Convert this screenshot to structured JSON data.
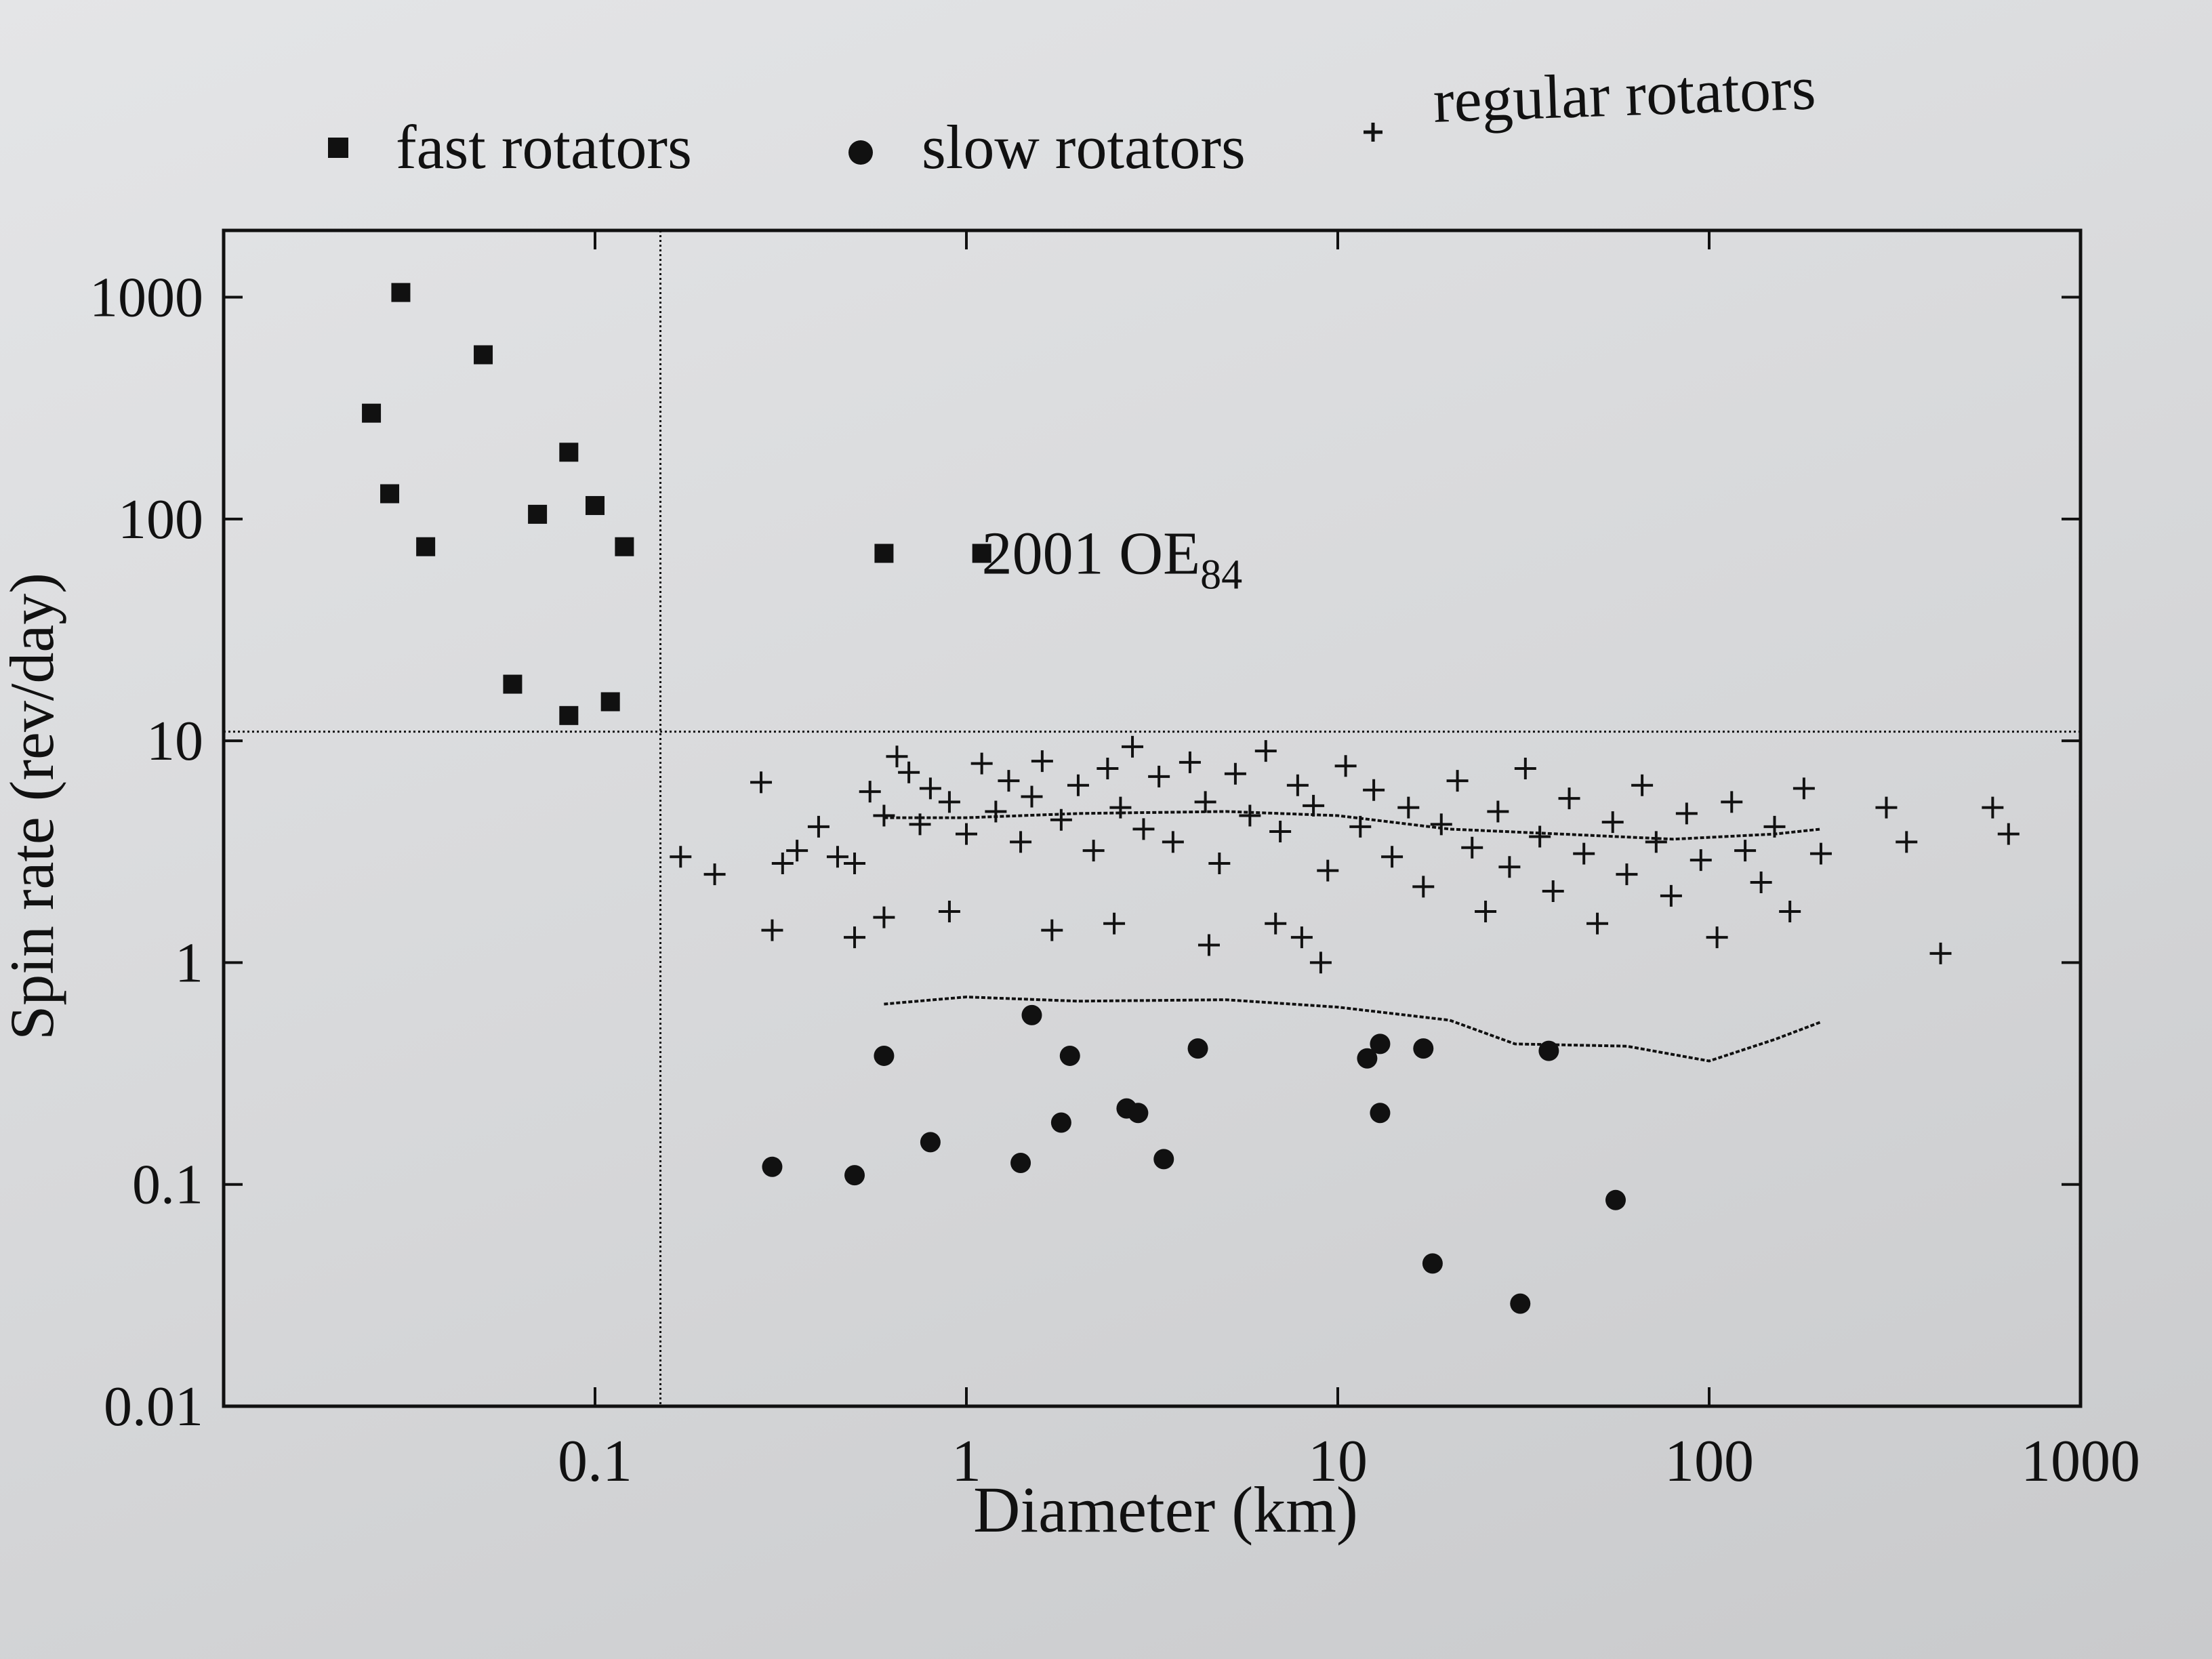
{
  "chart_data": {
    "type": "scatter",
    "title": "",
    "xlabel": "Diameter (km)",
    "ylabel": "Spin rate (rev/day)",
    "x_scale": "log",
    "y_scale": "log",
    "xlim": [
      0.01,
      1000
    ],
    "ylim": [
      0.01,
      2000
    ],
    "x_ticks": [
      {
        "value": 0.1,
        "label": "0.1"
      },
      {
        "value": 1,
        "label": "1"
      },
      {
        "value": 10,
        "label": "10"
      },
      {
        "value": 100,
        "label": "100"
      },
      {
        "value": 1000,
        "label": "1000"
      }
    ],
    "y_ticks": [
      {
        "value": 0.01,
        "label": "0.01"
      },
      {
        "value": 0.1,
        "label": "0.1"
      },
      {
        "value": 1,
        "label": "1"
      },
      {
        "value": 10,
        "label": "10"
      },
      {
        "value": 100,
        "label": "100"
      },
      {
        "value": 1000,
        "label": "1000"
      }
    ],
    "legend_position": "top",
    "series": [
      {
        "name": "fast rotators",
        "marker": "square",
        "points": [
          [
            0.03,
            1050
          ],
          [
            0.05,
            550
          ],
          [
            0.025,
            300
          ],
          [
            0.085,
            200
          ],
          [
            0.028,
            130
          ],
          [
            0.1,
            115
          ],
          [
            0.07,
            105
          ],
          [
            0.035,
            75
          ],
          [
            0.12,
            75
          ],
          [
            0.06,
            18
          ],
          [
            0.085,
            13
          ],
          [
            0.11,
            15
          ],
          [
            1.1,
            70
          ]
        ]
      },
      {
        "name": "slow rotators",
        "marker": "circle",
        "points": [
          [
            1.5,
            0.58
          ],
          [
            0.6,
            0.38
          ],
          [
            1.9,
            0.38
          ],
          [
            4.2,
            0.41
          ],
          [
            13,
            0.43
          ],
          [
            12,
            0.37
          ],
          [
            17,
            0.41
          ],
          [
            37,
            0.4
          ],
          [
            2.7,
            0.22
          ],
          [
            2.9,
            0.21
          ],
          [
            13,
            0.21
          ],
          [
            1.8,
            0.19
          ],
          [
            0.8,
            0.155
          ],
          [
            0.3,
            0.12
          ],
          [
            0.5,
            0.11
          ],
          [
            1.4,
            0.125
          ],
          [
            3.4,
            0.13
          ],
          [
            56,
            0.085
          ],
          [
            18,
            0.044
          ],
          [
            31,
            0.029
          ]
        ]
      },
      {
        "name": "regular rotators",
        "marker": "plus",
        "points": [
          [
            0.17,
            3.0
          ],
          [
            0.21,
            2.5
          ],
          [
            0.28,
            6.5
          ],
          [
            0.32,
            2.8
          ],
          [
            0.35,
            3.2
          ],
          [
            0.4,
            4.1
          ],
          [
            0.45,
            3.0
          ],
          [
            0.5,
            2.8
          ],
          [
            0.55,
            5.9
          ],
          [
            0.6,
            4.6
          ],
          [
            0.65,
            8.5
          ],
          [
            0.7,
            7.2
          ],
          [
            0.75,
            4.2
          ],
          [
            0.8,
            6.1
          ],
          [
            0.9,
            5.3
          ],
          [
            1.0,
            3.8
          ],
          [
            1.1,
            7.9
          ],
          [
            1.2,
            4.8
          ],
          [
            1.3,
            6.6
          ],
          [
            1.4,
            3.5
          ],
          [
            1.5,
            5.6
          ],
          [
            1.6,
            8.1
          ],
          [
            1.8,
            4.4
          ],
          [
            2.0,
            6.3
          ],
          [
            2.2,
            3.2
          ],
          [
            2.4,
            7.5
          ],
          [
            2.6,
            5.0
          ],
          [
            2.8,
            9.4
          ],
          [
            3.0,
            4.0
          ],
          [
            3.3,
            6.9
          ],
          [
            3.6,
            3.5
          ],
          [
            4.0,
            8.0
          ],
          [
            4.4,
            5.3
          ],
          [
            4.8,
            2.8
          ],
          [
            5.3,
            7.1
          ],
          [
            5.8,
            4.6
          ],
          [
            6.4,
            9.0
          ],
          [
            7.0,
            3.9
          ],
          [
            7.8,
            6.3
          ],
          [
            8.6,
            5.1
          ],
          [
            9.4,
            2.6
          ],
          [
            10.5,
            7.7
          ],
          [
            11.5,
            4.1
          ],
          [
            12.5,
            6.0
          ],
          [
            14,
            3.0
          ],
          [
            15.5,
            5.0
          ],
          [
            17,
            2.2
          ],
          [
            19,
            4.2
          ],
          [
            21,
            6.6
          ],
          [
            23,
            3.3
          ],
          [
            25,
            1.7
          ],
          [
            27,
            4.8
          ],
          [
            29,
            2.7
          ],
          [
            32,
            7.5
          ],
          [
            35,
            3.7
          ],
          [
            38,
            2.1
          ],
          [
            42,
            5.5
          ],
          [
            46,
            3.1
          ],
          [
            50,
            1.5
          ],
          [
            55,
            4.3
          ],
          [
            60,
            2.5
          ],
          [
            66,
            6.3
          ],
          [
            72,
            3.5
          ],
          [
            79,
            2.0
          ],
          [
            87,
            4.7
          ],
          [
            95,
            2.9
          ],
          [
            105,
            1.3
          ],
          [
            115,
            5.3
          ],
          [
            125,
            3.2
          ],
          [
            138,
            2.3
          ],
          [
            150,
            4.1
          ],
          [
            165,
            1.7
          ],
          [
            180,
            6.1
          ],
          [
            200,
            3.1
          ],
          [
            300,
            5.0
          ],
          [
            340,
            3.5
          ],
          [
            420,
            1.1
          ],
          [
            580,
            5.0
          ],
          [
            640,
            3.8
          ],
          [
            0.5,
            1.3
          ],
          [
            0.6,
            1.6
          ],
          [
            0.9,
            1.7
          ],
          [
            1.7,
            1.4
          ],
          [
            2.5,
            1.5
          ],
          [
            4.5,
            1.2
          ],
          [
            6.8,
            1.5
          ],
          [
            8.0,
            1.3
          ],
          [
            9.0,
            1.0
          ],
          [
            0.3,
            1.4
          ]
        ]
      },
      {
        "name": "2001 OE84",
        "marker": "square",
        "points": [
          [
            0.6,
            70
          ]
        ]
      }
    ],
    "annotations": [
      {
        "text": "2001 OE",
        "subscript": "84",
        "x": 1.1,
        "y": 70
      }
    ],
    "reference_lines": [
      {
        "type": "vertical",
        "x": 0.15,
        "style": "dotted"
      },
      {
        "type": "horizontal",
        "y": 11,
        "style": "dotted"
      },
      {
        "type": "running-median",
        "style": "dashed",
        "values_x": [
          0.6,
          1,
          2,
          5,
          10,
          20,
          40,
          80,
          150,
          200
        ],
        "values_y": [
          4.5,
          4.5,
          4.7,
          4.8,
          4.6,
          4.0,
          3.8,
          3.6,
          3.8,
          4.0
        ]
      },
      {
        "type": "running-lower-bound",
        "style": "dashed",
        "values_x": [
          0.6,
          1,
          2,
          5,
          10,
          20,
          30,
          60,
          100,
          150,
          200
        ],
        "values_y": [
          0.65,
          0.7,
          0.67,
          0.68,
          0.63,
          0.55,
          0.43,
          0.42,
          0.36,
          0.45,
          0.54
        ]
      }
    ]
  },
  "legend": {
    "fast_label": "fast rotators",
    "slow_label": "slow rotators",
    "regular_label": "regular rotators"
  },
  "colors": {
    "ink": "#111111",
    "paper": "#e2e3e5"
  }
}
